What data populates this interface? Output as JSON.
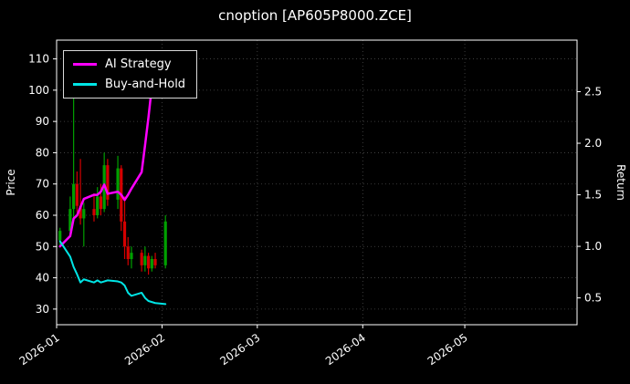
{
  "title": "cnoption [AP605P8000.ZCE]",
  "legend": {
    "items": [
      {
        "label": "AI Strategy",
        "color": "#ff00ff"
      },
      {
        "label": "Buy-and-Hold",
        "color": "#00e5e5"
      }
    ]
  },
  "chart_data": {
    "type": "candlestick+line",
    "title": "cnoption [AP605P8000.ZCE]",
    "xlabel": "",
    "ylabel_left": "Price",
    "ylabel_right": "Return",
    "grid": true,
    "legend_position": "upper-left",
    "x_ticks": [
      {
        "label": "2026-01",
        "day": 0
      },
      {
        "label": "2026-02",
        "day": 31
      },
      {
        "label": "2026-03",
        "day": 59
      },
      {
        "label": "2026-04",
        "day": 90
      },
      {
        "label": "2026-05",
        "day": 120
      }
    ],
    "x_domain_days": [
      0,
      153
    ],
    "price_ylim": [
      25,
      116
    ],
    "return_ylim": [
      0.24,
      3.0
    ],
    "price_ticks": [
      30,
      40,
      50,
      60,
      70,
      80,
      90,
      100,
      110
    ],
    "return_ticks": [
      0.5,
      1.0,
      1.5,
      2.0,
      2.5
    ],
    "colors": {
      "up": "#00a000",
      "down": "#d40000",
      "spine": "#ffffff",
      "grid": "#4a4a4a",
      "text": "#ffffff"
    },
    "candles": [
      {
        "date": "2026-01-02",
        "o": 52,
        "h": 56,
        "l": 50,
        "c": 55
      },
      {
        "date": "2026-01-05",
        "o": 55,
        "h": 66,
        "l": 54,
        "c": 62
      },
      {
        "date": "2026-01-06",
        "o": 62,
        "h": 101,
        "l": 59,
        "c": 70
      },
      {
        "date": "2026-01-07",
        "o": 70,
        "h": 74,
        "l": 61,
        "c": 63
      },
      {
        "date": "2026-01-08",
        "o": 63,
        "h": 78,
        "l": 57,
        "c": 59
      },
      {
        "date": "2026-01-09",
        "o": 59,
        "h": 64,
        "l": 50,
        "c": 62
      },
      {
        "date": "2026-01-12",
        "o": 62,
        "h": 67,
        "l": 58,
        "c": 60
      },
      {
        "date": "2026-01-13",
        "o": 60,
        "h": 69,
        "l": 59,
        "c": 66
      },
      {
        "date": "2026-01-14",
        "o": 66,
        "h": 70,
        "l": 60,
        "c": 62
      },
      {
        "date": "2026-01-15",
        "o": 62,
        "h": 80,
        "l": 61,
        "c": 76
      },
      {
        "date": "2026-01-16",
        "o": 76,
        "h": 78,
        "l": 63,
        "c": 65
      },
      {
        "date": "2026-01-19",
        "o": 65,
        "h": 79,
        "l": 62,
        "c": 75
      },
      {
        "date": "2026-01-20",
        "o": 75,
        "h": 76,
        "l": 55,
        "c": 58
      },
      {
        "date": "2026-01-21",
        "o": 58,
        "h": 66,
        "l": 46,
        "c": 50
      },
      {
        "date": "2026-01-22",
        "o": 50,
        "h": 53,
        "l": 44,
        "c": 46
      },
      {
        "date": "2026-01-23",
        "o": 46,
        "h": 50,
        "l": 43,
        "c": 48
      },
      {
        "date": "2026-01-26",
        "o": 48,
        "h": 49,
        "l": 42,
        "c": 44
      },
      {
        "date": "2026-01-27",
        "o": 44,
        "h": 50,
        "l": 42,
        "c": 47
      },
      {
        "date": "2026-01-28",
        "o": 47,
        "h": 48,
        "l": 41,
        "c": 43
      },
      {
        "date": "2026-01-29",
        "o": 43,
        "h": 47,
        "l": 42,
        "c": 46
      },
      {
        "date": "2026-01-30",
        "o": 46,
        "h": 48,
        "l": 43,
        "c": 44
      },
      {
        "date": "2026-02-02",
        "o": 44,
        "h": 60,
        "l": 43,
        "c": 58
      }
    ],
    "series": [
      {
        "name": "AI Strategy",
        "axis": "return",
        "color": "#ff00ff",
        "width": 2.5,
        "points": [
          [
            "2026-01-02",
            1.0
          ],
          [
            "2026-01-05",
            1.1
          ],
          [
            "2026-01-06",
            1.27
          ],
          [
            "2026-01-07",
            1.3
          ],
          [
            "2026-01-08",
            1.38
          ],
          [
            "2026-01-09",
            1.46
          ],
          [
            "2026-01-12",
            1.5
          ],
          [
            "2026-01-13",
            1.5
          ],
          [
            "2026-01-14",
            1.53
          ],
          [
            "2026-01-15",
            1.6
          ],
          [
            "2026-01-16",
            1.51
          ],
          [
            "2026-01-19",
            1.53
          ],
          [
            "2026-01-20",
            1.5
          ],
          [
            "2026-01-21",
            1.45
          ],
          [
            "2026-01-22",
            1.5
          ],
          [
            "2026-01-23",
            1.56
          ],
          [
            "2026-01-26",
            1.72
          ],
          [
            "2026-01-27",
            1.98
          ],
          [
            "2026-01-28",
            2.25
          ],
          [
            "2026-01-29",
            2.55
          ],
          [
            "2026-01-30",
            2.85
          ]
        ]
      },
      {
        "name": "Buy-and-Hold",
        "axis": "return",
        "color": "#00e5e5",
        "width": 2,
        "points": [
          [
            "2026-01-02",
            1.05
          ],
          [
            "2026-01-05",
            0.9
          ],
          [
            "2026-01-06",
            0.8
          ],
          [
            "2026-01-07",
            0.73
          ],
          [
            "2026-01-08",
            0.65
          ],
          [
            "2026-01-09",
            0.68
          ],
          [
            "2026-01-12",
            0.65
          ],
          [
            "2026-01-13",
            0.67
          ],
          [
            "2026-01-14",
            0.65
          ],
          [
            "2026-01-15",
            0.66
          ],
          [
            "2026-01-16",
            0.67
          ],
          [
            "2026-01-19",
            0.66
          ],
          [
            "2026-01-20",
            0.65
          ],
          [
            "2026-01-21",
            0.62
          ],
          [
            "2026-01-22",
            0.55
          ],
          [
            "2026-01-23",
            0.52
          ],
          [
            "2026-01-26",
            0.55
          ],
          [
            "2026-01-27",
            0.5
          ],
          [
            "2026-01-28",
            0.47
          ],
          [
            "2026-01-29",
            0.46
          ],
          [
            "2026-01-30",
            0.45
          ],
          [
            "2026-02-02",
            0.44
          ]
        ]
      }
    ]
  }
}
